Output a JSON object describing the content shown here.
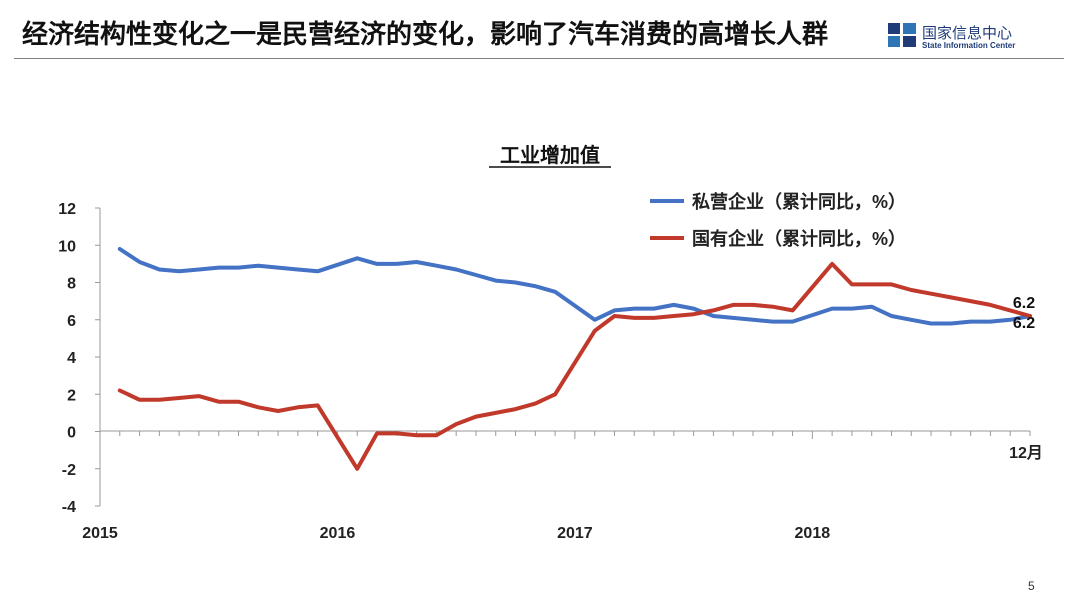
{
  "slide": {
    "title": "经济结构性变化之一是民营经济的变化，影响了汽车消费的高增长人群",
    "logo_cn": "国家信息中心",
    "logo_en": "State Information Center",
    "page_number": "5"
  },
  "colors": {
    "private": "#4472C4",
    "state": "#C0392B",
    "logo": "#1f3c78"
  },
  "chart_data": {
    "type": "line",
    "title": "工业增加值",
    "ylim": [
      -4,
      12
    ],
    "yticks": [
      12,
      10,
      8,
      6,
      4,
      2,
      0,
      -2,
      -4
    ],
    "x_tick_labels": [
      "2015",
      "2016",
      "2017",
      "2018"
    ],
    "x_end_label": "12月",
    "x_range": [
      "2015-02",
      "2018-12"
    ],
    "series": [
      {
        "name": "私营企业（累计同比，%）",
        "color": "#4472C4",
        "x": [
          "2015-02",
          "2015-03",
          "2015-04",
          "2015-05",
          "2015-06",
          "2015-07",
          "2015-08",
          "2015-09",
          "2015-10",
          "2015-11",
          "2015-12",
          "2016-02",
          "2016-03",
          "2016-04",
          "2016-05",
          "2016-06",
          "2016-07",
          "2016-08",
          "2016-09",
          "2016-10",
          "2016-11",
          "2016-12",
          "2017-02",
          "2017-03",
          "2017-04",
          "2017-05",
          "2017-06",
          "2017-07",
          "2017-08",
          "2017-09",
          "2017-10",
          "2017-11",
          "2017-12",
          "2018-02",
          "2018-03",
          "2018-04",
          "2018-05",
          "2018-06",
          "2018-07",
          "2018-08",
          "2018-09",
          "2018-10",
          "2018-11",
          "2018-12"
        ],
        "values": [
          9.8,
          9.1,
          8.7,
          8.6,
          8.7,
          8.8,
          8.8,
          8.9,
          8.8,
          8.7,
          8.6,
          9.3,
          9.0,
          9.0,
          9.1,
          8.9,
          8.7,
          8.4,
          8.1,
          8.0,
          7.8,
          7.5,
          6.0,
          6.5,
          6.6,
          6.6,
          6.8,
          6.6,
          6.2,
          6.1,
          6.0,
          5.9,
          5.9,
          6.6,
          6.6,
          6.7,
          6.2,
          6.0,
          5.8,
          5.8,
          5.9,
          5.9,
          6.0,
          6.2
        ],
        "end_label": "6.2"
      },
      {
        "name": "国有企业（累计同比，%）",
        "color": "#C0392B",
        "x": [
          "2015-02",
          "2015-03",
          "2015-04",
          "2015-05",
          "2015-06",
          "2015-07",
          "2015-08",
          "2015-09",
          "2015-10",
          "2015-11",
          "2015-12",
          "2016-02",
          "2016-03",
          "2016-04",
          "2016-05",
          "2016-06",
          "2016-07",
          "2016-08",
          "2016-09",
          "2016-10",
          "2016-11",
          "2016-12",
          "2017-02",
          "2017-03",
          "2017-04",
          "2017-05",
          "2017-06",
          "2017-07",
          "2017-08",
          "2017-09",
          "2017-10",
          "2017-11",
          "2017-12",
          "2018-02",
          "2018-03",
          "2018-04",
          "2018-05",
          "2018-06",
          "2018-07",
          "2018-08",
          "2018-09",
          "2018-10",
          "2018-11",
          "2018-12"
        ],
        "values": [
          2.2,
          1.7,
          1.7,
          1.8,
          1.9,
          1.6,
          1.6,
          1.3,
          1.1,
          1.3,
          1.4,
          -2.0,
          -0.1,
          -0.1,
          -0.2,
          -0.2,
          0.4,
          0.8,
          1.0,
          1.2,
          1.5,
          2.0,
          5.4,
          6.2,
          6.1,
          6.1,
          6.2,
          6.3,
          6.5,
          6.8,
          6.8,
          6.7,
          6.5,
          9.0,
          7.9,
          7.9,
          7.9,
          7.6,
          7.4,
          7.2,
          7.0,
          6.8,
          6.5,
          6.2
        ],
        "end_label": "6.2"
      }
    ]
  }
}
